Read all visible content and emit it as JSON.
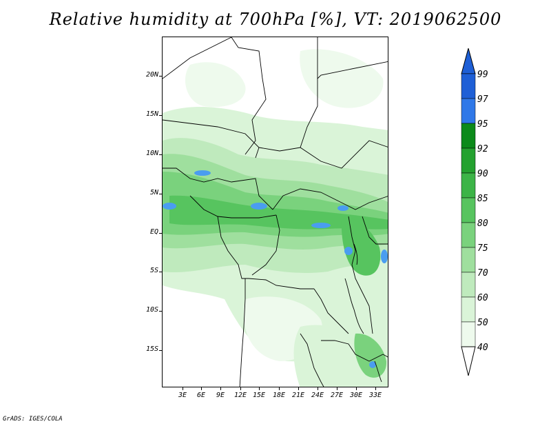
{
  "title": "Relative humidity at 700hPa [%], VT: 2019062500",
  "credit": "GrADS: IGES/COLA",
  "map": {
    "lat_labels": [
      "20N",
      "15N",
      "10N",
      "5N",
      "EQ",
      "5S",
      "10S",
      "15S"
    ],
    "lon_labels": [
      "3E",
      "6E",
      "9E",
      "12E",
      "15E",
      "18E",
      "21E",
      "24E",
      "27E",
      "30E",
      "33E"
    ]
  },
  "legend": {
    "labels": [
      "99",
      "97",
      "95",
      "92",
      "90",
      "85",
      "80",
      "75",
      "70",
      "60",
      "50",
      "40"
    ],
    "colors": [
      "#1e5fd6",
      "#2f78e8",
      "#4a9df0",
      "#0c8a1a",
      "#24a12f",
      "#3cb447",
      "#57c45f",
      "#7ad27d",
      "#9fdf9e",
      "#bfeabd",
      "#daf4d8",
      "#eefaed"
    ]
  },
  "colors": {
    "light": "#eefaed",
    "pale": "#daf4d8",
    "soft": "#bfeabd",
    "mid": "#9fdf9e",
    "green": "#7ad27d",
    "green2": "#57c45f",
    "deep": "#3cb447",
    "blue": "#4a9df0"
  }
}
